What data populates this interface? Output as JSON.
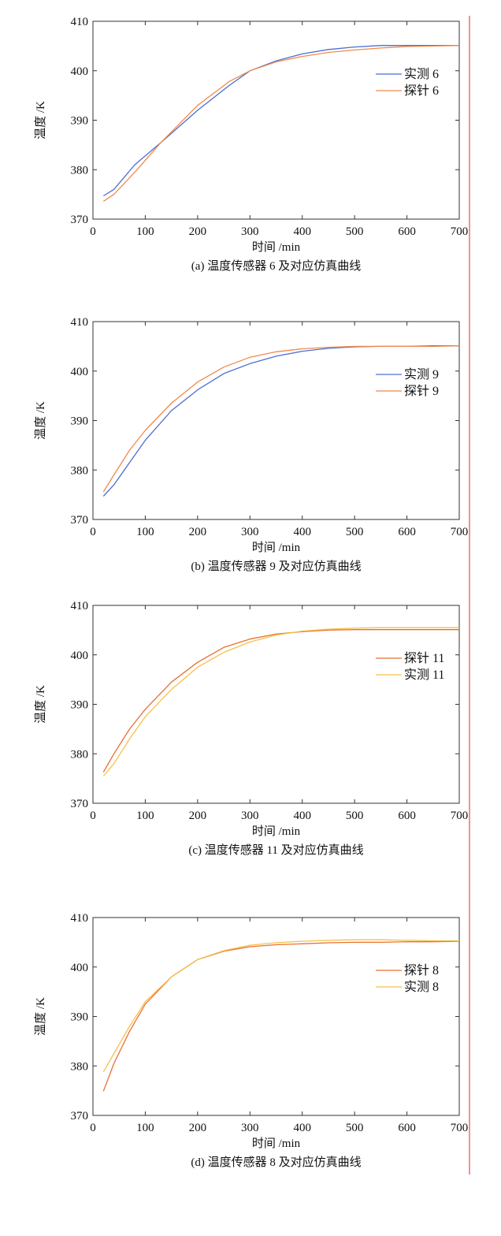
{
  "chart_data": [
    {
      "type": "line",
      "caption": "(a) 温度传感器 6 及对应仿真曲线",
      "xlabel": "时间 /min",
      "ylabel": "温度 /K",
      "xlim": [
        0,
        700
      ],
      "ylim": [
        370,
        410
      ],
      "xticks": [
        0,
        100,
        200,
        300,
        400,
        500,
        600,
        700
      ],
      "yticks": [
        370,
        380,
        390,
        400,
        410
      ],
      "grid": false,
      "legend_position": "right",
      "series": [
        {
          "name": "实测 6",
          "color": "#4a6fd1",
          "x": [
            20,
            40,
            80,
            130,
            200,
            260,
            300,
            350,
            400,
            450,
            500,
            550,
            600,
            650,
            700
          ],
          "y": [
            374.7,
            376.0,
            381.0,
            385.5,
            392.0,
            397.0,
            400.0,
            402.0,
            403.4,
            404.3,
            404.8,
            405.1,
            405.1,
            405.1,
            405.1
          ]
        },
        {
          "name": "探针 6",
          "color": "#f08a4b",
          "x": [
            20,
            40,
            80,
            130,
            200,
            260,
            300,
            350,
            400,
            450,
            500,
            550,
            600,
            650,
            700
          ],
          "y": [
            373.6,
            375.0,
            379.5,
            385.5,
            393.0,
            397.8,
            400.0,
            401.8,
            402.9,
            403.7,
            404.2,
            404.6,
            404.9,
            405.0,
            405.1
          ]
        }
      ]
    },
    {
      "type": "line",
      "caption": "(b) 温度传感器 9 及对应仿真曲线",
      "xlabel": "时间 /min",
      "ylabel": "温度 /K",
      "xlim": [
        0,
        700
      ],
      "ylim": [
        370,
        410
      ],
      "xticks": [
        0,
        100,
        200,
        300,
        400,
        500,
        600,
        700
      ],
      "yticks": [
        370,
        380,
        390,
        400,
        410
      ],
      "grid": false,
      "legend_position": "right",
      "series": [
        {
          "name": "实测 9",
          "color": "#4a6fd1",
          "x": [
            20,
            40,
            70,
            100,
            150,
            200,
            250,
            300,
            350,
            400,
            450,
            500,
            550,
            600,
            650,
            700
          ],
          "y": [
            374.7,
            377.0,
            381.5,
            386.0,
            392.0,
            396.2,
            399.5,
            401.5,
            403.0,
            404.0,
            404.6,
            404.9,
            405.0,
            405.0,
            405.1,
            405.1
          ]
        },
        {
          "name": "探针 9",
          "color": "#f08a4b",
          "x": [
            20,
            40,
            70,
            100,
            150,
            200,
            250,
            300,
            350,
            400,
            450,
            500,
            550,
            600,
            650,
            700
          ],
          "y": [
            375.6,
            379.0,
            384.0,
            388.0,
            393.5,
            397.8,
            400.8,
            402.8,
            403.9,
            404.5,
            404.8,
            405.0,
            405.0,
            405.0,
            405.0,
            405.1
          ]
        }
      ]
    },
    {
      "type": "line",
      "caption": "(c) 温度传感器 11 及对应仿真曲线",
      "xlabel": "时间 /min",
      "ylabel": "温度 /K",
      "xlim": [
        0,
        700
      ],
      "ylim": [
        370,
        410
      ],
      "xticks": [
        0,
        100,
        200,
        300,
        400,
        500,
        600,
        700
      ],
      "yticks": [
        370,
        380,
        390,
        400,
        410
      ],
      "grid": false,
      "legend_position": "right",
      "series": [
        {
          "name": "探针 11",
          "color": "#e8702f",
          "x": [
            20,
            40,
            70,
            100,
            150,
            200,
            250,
            300,
            350,
            400,
            450,
            500,
            550,
            600,
            650,
            700
          ],
          "y": [
            376.3,
            380.0,
            385.0,
            389.0,
            394.5,
            398.5,
            401.5,
            403.2,
            404.2,
            404.7,
            405.0,
            405.1,
            405.1,
            405.1,
            405.1,
            405.1
          ]
        },
        {
          "name": "实测 11",
          "color": "#f5c04a",
          "x": [
            20,
            40,
            70,
            100,
            150,
            200,
            250,
            300,
            350,
            400,
            450,
            500,
            550,
            600,
            650,
            700
          ],
          "y": [
            375.5,
            378.0,
            383.0,
            387.5,
            393.0,
            397.5,
            400.5,
            402.6,
            404.0,
            404.8,
            405.2,
            405.4,
            405.5,
            405.5,
            405.5,
            405.5
          ]
        }
      ]
    },
    {
      "type": "line",
      "caption": "(d) 温度传感器 8 及对应仿真曲线",
      "xlabel": "时间 /min",
      "ylabel": "温度 /K",
      "xlim": [
        0,
        700
      ],
      "ylim": [
        370,
        410
      ],
      "xticks": [
        0,
        100,
        200,
        300,
        400,
        500,
        600,
        700
      ],
      "yticks": [
        370,
        380,
        390,
        400,
        410
      ],
      "grid": false,
      "legend_position": "right",
      "series": [
        {
          "name": "探针 8",
          "color": "#e8702f",
          "x": [
            20,
            40,
            70,
            100,
            150,
            200,
            250,
            300,
            350,
            400,
            450,
            500,
            550,
            600,
            650,
            700
          ],
          "y": [
            374.9,
            380.5,
            387.0,
            392.5,
            398.0,
            401.5,
            403.2,
            404.1,
            404.5,
            404.7,
            404.9,
            405.0,
            405.0,
            405.1,
            405.1,
            405.2
          ]
        },
        {
          "name": "实测 8",
          "color": "#f5c04a",
          "x": [
            20,
            40,
            70,
            100,
            150,
            200,
            250,
            300,
            350,
            400,
            450,
            500,
            550,
            600,
            650,
            700
          ],
          "y": [
            378.8,
            382.5,
            388.0,
            393.0,
            398.0,
            401.5,
            403.3,
            404.4,
            404.9,
            405.2,
            405.4,
            405.5,
            405.5,
            405.4,
            405.3,
            405.3
          ]
        }
      ]
    }
  ]
}
